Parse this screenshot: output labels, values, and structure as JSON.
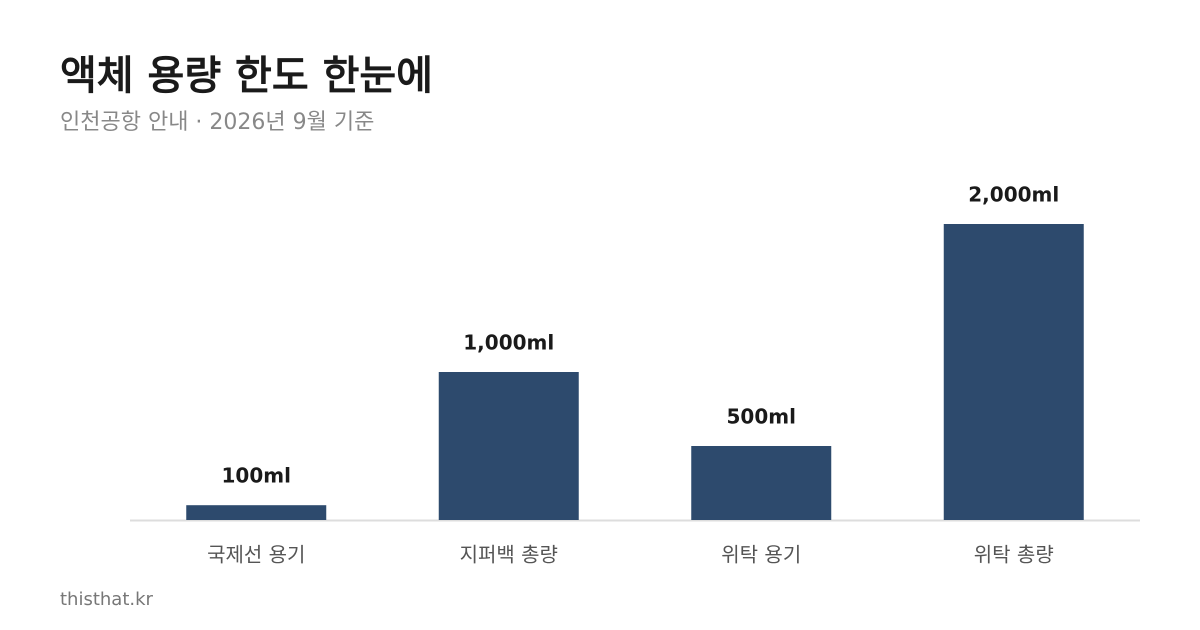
{
  "chart_data": {
    "type": "bar",
    "title": "액체 용량 한도 한눈에",
    "subtitle": "인천공항 안내 · 2026년 9월 기준",
    "categories": [
      "국제선 용기",
      "지퍼백 총량",
      "위탁 용기",
      "위탁 총량"
    ],
    "values": [
      100,
      1000,
      500,
      2000
    ],
    "value_labels": [
      "100ml",
      "1,000ml",
      "500ml",
      "2,000ml"
    ],
    "color": "#2d4a6d",
    "ylim": [
      0,
      2000
    ],
    "footer": "thisthat.kr"
  }
}
